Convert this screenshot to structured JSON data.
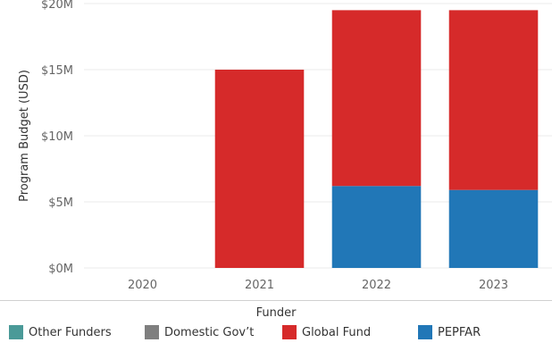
{
  "chart_data": {
    "type": "bar",
    "stacked": true,
    "categories": [
      "2020",
      "2021",
      "2022",
      "2023"
    ],
    "series": [
      {
        "name": "Other Funders",
        "color": "#4a9a98",
        "values": [
          0,
          0,
          0,
          0
        ]
      },
      {
        "name": "Domestic Gov't",
        "color": "#7f7f7f",
        "values": [
          0,
          0,
          0,
          0
        ]
      },
      {
        "name": "PEPFAR",
        "color": "#2177b7",
        "values": [
          0,
          0,
          6.2,
          5.9
        ]
      },
      {
        "name": "Global Fund",
        "color": "#d62a2a",
        "values": [
          0,
          15.0,
          13.3,
          13.6
        ]
      }
    ],
    "ylabel": "Program Budget (USD)",
    "ylim": [
      0,
      20
    ],
    "yticks": [
      {
        "value": 0,
        "label": "$0M"
      },
      {
        "value": 5,
        "label": "$5M"
      },
      {
        "value": 10,
        "label": "$10M"
      },
      {
        "value": 15,
        "label": "$15M"
      },
      {
        "value": 20,
        "label": "$20M"
      }
    ],
    "grid": true,
    "legend": {
      "title": "Funder",
      "placement": "bottom",
      "items": [
        {
          "label": "Other Funders",
          "color": "#4a9a98"
        },
        {
          "label": "Domestic Gov’t",
          "color": "#7f7f7f"
        },
        {
          "label": "Global Fund",
          "color": "#d62a2a"
        },
        {
          "label": "PEPFAR",
          "color": "#2177b7"
        }
      ]
    }
  }
}
